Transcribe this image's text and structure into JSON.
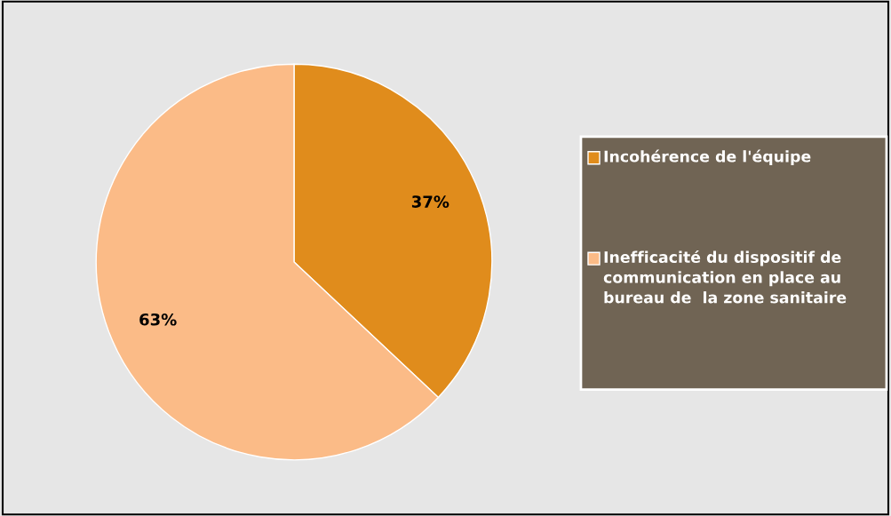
{
  "chart_data": {
    "type": "pie",
    "categories": [
      "Incohérence de l'équipe",
      "Inefficacité du dispositif de communication en place au bureau de  la zone sanitaire"
    ],
    "values": [
      37,
      63
    ],
    "colors": [
      "#e08c1c",
      "#fbbb87"
    ],
    "value_labels": [
      "37%",
      "63%"
    ],
    "legend": "right"
  }
}
